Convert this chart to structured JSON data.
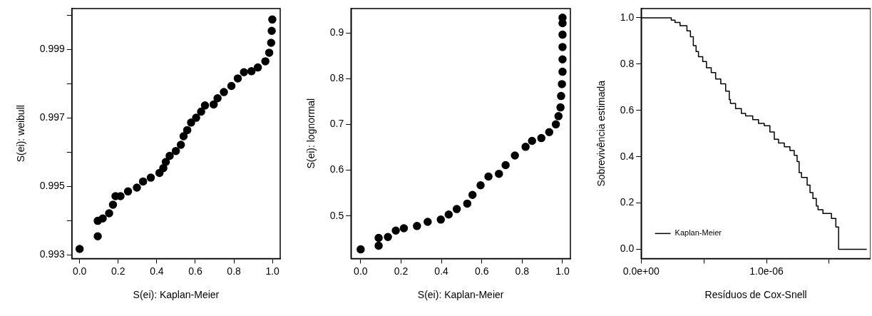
{
  "chart_data": [
    {
      "type": "scatter",
      "xlabel": "S(ei): Kaplan-Meier",
      "ylabel": "S(ei): weibull",
      "marker": "circle",
      "xlim": [
        -0.04,
        1.04
      ],
      "ylim": [
        0.9929,
        1.0002
      ],
      "xticks": [
        {
          "value": 0,
          "label": "0.0"
        },
        {
          "value": 0.2,
          "label": "0.2"
        },
        {
          "value": 0.4,
          "label": "0.4"
        },
        {
          "value": 0.6,
          "label": "0.6"
        },
        {
          "value": 0.8,
          "label": "0.8"
        },
        {
          "value": 1,
          "label": "1.0"
        }
      ],
      "yticks": [
        0.993,
        {
          "value": 0.994,
          "label": null
        },
        0.995,
        {
          "value": 0.996,
          "label": null
        },
        0.997,
        {
          "value": 0.998,
          "label": null
        },
        0.999,
        {
          "value": 1.0,
          "label": null
        }
      ],
      "series": [
        {
          "color": "#000000",
          "x": [
            0,
            0.094,
            0.094,
            0.12,
            0.153,
            0.173,
            0.186,
            0.212,
            0.251,
            0.297,
            0.329,
            0.369,
            0.414,
            0.434,
            0.447,
            0.467,
            0.499,
            0.525,
            0.539,
            0.558,
            0.578,
            0.604,
            0.63,
            0.65,
            0.695,
            0.715,
            0.748,
            0.787,
            0.82,
            0.852,
            0.891,
            0.924,
            0.963,
            0.983,
            0.993,
            0.996,
            0.999
          ],
          "values": [
            0.99318,
            0.99355,
            0.994,
            0.99407,
            0.99422,
            0.99447,
            0.99472,
            0.99472,
            0.99486,
            0.99497,
            0.99515,
            0.99526,
            0.9954,
            0.99554,
            0.99572,
            0.9959,
            0.99604,
            0.99622,
            0.99647,
            0.99665,
            0.99687,
            0.99701,
            0.99719,
            0.99737,
            0.9974,
            0.99758,
            0.99776,
            0.99794,
            0.99816,
            0.99834,
            0.99837,
            0.99848,
            0.99866,
            0.99891,
            0.9992,
            0.99955,
            0.99988
          ]
        }
      ]
    },
    {
      "type": "scatter",
      "xlabel": "S(ei): Kaplan-Meier",
      "ylabel": "S(ei): lognormal",
      "marker": "circle",
      "xlim": [
        -0.048,
        1.039
      ],
      "ylim": [
        0.407,
        0.953
      ],
      "xticks": [
        {
          "value": 0,
          "label": "0.0"
        },
        {
          "value": 0.2,
          "label": "0.2"
        },
        {
          "value": 0.4,
          "label": "0.4"
        },
        {
          "value": 0.6,
          "label": "0.6"
        },
        {
          "value": 0.8,
          "label": "0.8"
        },
        {
          "value": 1,
          "label": "1.0"
        }
      ],
      "yticks": [
        0.5,
        0.6,
        0.7,
        0.8,
        0.9
      ],
      "series": [
        {
          "color": "#000000",
          "x": [
            0,
            0.089,
            0.089,
            0.135,
            0.174,
            0.214,
            0.279,
            0.332,
            0.397,
            0.436,
            0.476,
            0.528,
            0.554,
            0.594,
            0.633,
            0.685,
            0.718,
            0.764,
            0.817,
            0.849,
            0.895,
            0.934,
            0.967,
            0.98,
            0.99,
            0.993,
            0.997,
            1,
            1,
            1,
            1,
            1,
            1
          ],
          "values": [
            0.427,
            0.435,
            0.452,
            0.454,
            0.468,
            0.473,
            0.478,
            0.487,
            0.492,
            0.503,
            0.515,
            0.527,
            0.546,
            0.567,
            0.586,
            0.592,
            0.611,
            0.632,
            0.651,
            0.664,
            0.67,
            0.683,
            0.7,
            0.718,
            0.737,
            0.762,
            0.788,
            0.815,
            0.842,
            0.869,
            0.896,
            0.921,
            0.933
          ]
        }
      ]
    },
    {
      "type": "step",
      "xlabel": "Resíduos de Cox-Snell",
      "ylabel": "Sobrevivência estimada",
      "legend": "bottom left",
      "xlim": [
        0,
        1.83e-06
      ],
      "ylim": [
        -0.04,
        1.04
      ],
      "xticks": [
        {
          "value": 0,
          "label": "0.0e+00"
        },
        {
          "value": 5e-07,
          "label": null
        },
        {
          "value": 1e-06,
          "label": "1.0e-06"
        },
        {
          "value": 1.5e-06,
          "label": null
        }
      ],
      "yticks": [
        {
          "value": 0,
          "label": "0.0"
        },
        {
          "value": 0.2,
          "label": "0.2"
        },
        {
          "value": 0.4,
          "label": "0.4"
        },
        {
          "value": 0.6,
          "label": "0.6"
        },
        {
          "value": 0.8,
          "label": "0.8"
        },
        {
          "value": 1,
          "label": "1.0"
        }
      ],
      "series": [
        {
          "name": "Kaplan-Meier",
          "color": "#000000",
          "x": [
            0,
            2.4e-07,
            2.7e-07,
            3.1e-07,
            3.65e-07,
            3.93e-07,
            4.16e-07,
            4.38e-07,
            4.57e-07,
            4.91e-07,
            5.21e-07,
            5.59e-07,
            5.94e-07,
            6.35e-07,
            6.74e-07,
            7.03e-07,
            7.12e-07,
            7.53e-07,
            7.99e-07,
            8.33e-07,
            8.9e-07,
            9.36e-07,
            9.82e-07,
            1.027e-06,
            1.062e-06,
            1.096e-06,
            1.142e-06,
            1.187e-06,
            1.221e-06,
            1.244e-06,
            1.26e-06,
            1.279e-06,
            1.324e-06,
            1.347e-06,
            1.37e-06,
            1.397e-06,
            1.411e-06,
            1.45e-06,
            1.518e-06,
            1.553e-06,
            1.575e-06,
            1.8e-06
          ],
          "values": [
            1,
            1,
            0.99,
            0.98,
            0.966,
            0.944,
            0.918,
            0.88,
            0.854,
            0.832,
            0.811,
            0.784,
            0.763,
            0.736,
            0.715,
            0.683,
            0.646,
            0.63,
            0.608,
            0.587,
            0.576,
            0.56,
            0.544,
            0.534,
            0.507,
            0.475,
            0.459,
            0.443,
            0.427,
            0.406,
            0.379,
            0.331,
            0.31,
            0.277,
            0.245,
            0.219,
            0.187,
            0.171,
            0.155,
            0.133,
            0.096,
            0
          ]
        }
      ]
    }
  ]
}
